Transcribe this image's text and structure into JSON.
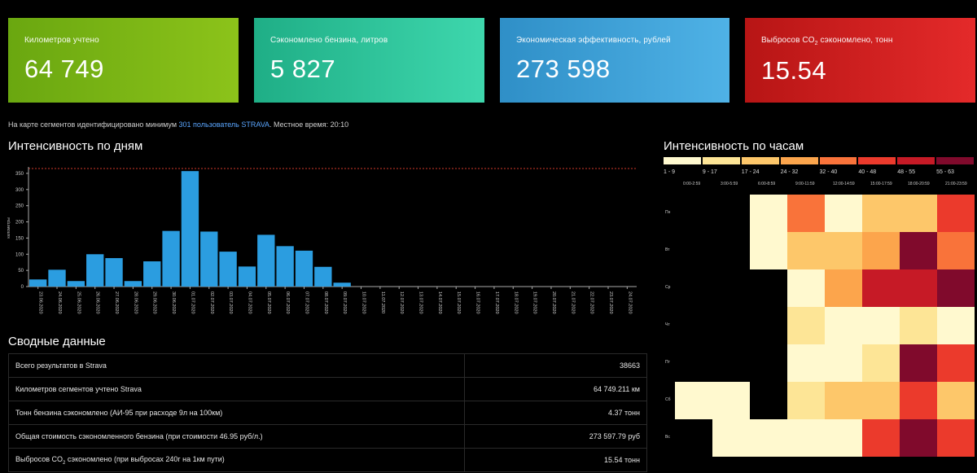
{
  "cards": [
    {
      "label": "Километров учтено",
      "value": "64 749",
      "color": "#7fb517"
    },
    {
      "label": "Сэкономлено бензина, литров",
      "value": "5 827",
      "color": "#2fc49c"
    },
    {
      "label": "Экономическая эффективность, рублей",
      "value": "273 598",
      "color": "#3fa2d8"
    },
    {
      "label_pre": "Выбросов CO",
      "label_sub": "2",
      "label_post": " сэкономлено, тонн",
      "value": "15.54",
      "color": "#cf1f1f"
    }
  ],
  "info": {
    "prefix": "На карте сегментов идентифицировано минимум ",
    "link": "301 пользователь STRAVA",
    "suffix": ". Местное время: 20:10"
  },
  "days_title": "Интенсивность по дням",
  "summary_title": "Сводные данные",
  "hours_title": "Интенсивность по часам",
  "summary": [
    {
      "label": "Всего результатов в Strava",
      "value": "38663"
    },
    {
      "label": "Километров сегментов учтено Strava",
      "value": "64 749.211 км"
    },
    {
      "label": "Тонн бензина сэкономлено (АИ-95 при расходе 9л на 100км)",
      "value": "4.37 тонн"
    },
    {
      "label": "Общая стоимость сэкономленного бензина (при стоимости 46.95 руб/л.)",
      "value": "273 597.79 руб"
    },
    {
      "label_pre": "Выбросов CO",
      "label_sub": "2",
      "label_post": " сэкономлено (при выбросах 240г на 1км пути)",
      "value": "15.54 тонн"
    }
  ],
  "chart_data": [
    {
      "type": "bar",
      "title": "Интенсивность по дням",
      "ylabel": "километры",
      "ylim": [
        0,
        360
      ],
      "yticks": [
        0,
        50,
        100,
        150,
        200,
        250,
        300,
        350
      ],
      "reference_line": 365,
      "color": "#2b9de0",
      "categories": [
        "23.06.2020",
        "24.06.2020",
        "25.06.2020",
        "26.06.2020",
        "27.06.2020",
        "28.06.2020",
        "29.06.2020",
        "30.06.2020",
        "01.07.2020",
        "02.07.2020",
        "03.07.2020",
        "04.07.2020",
        "05.07.2020",
        "06.07.2020",
        "07.07.2020",
        "08.07.2020",
        "09.07.2020",
        "10.07.2020",
        "11.07.2020",
        "12.07.2020",
        "13.07.2020",
        "14.07.2020",
        "15.07.2020",
        "16.07.2020",
        "17.07.2020",
        "18.07.2020",
        "19.07.2020",
        "20.07.2020",
        "21.07.2020",
        "22.07.2020",
        "23.07.2020",
        "24.07.2020"
      ],
      "values": [
        22,
        52,
        17,
        100,
        88,
        17,
        78,
        172,
        357,
        170,
        108,
        62,
        160,
        125,
        111,
        61,
        12,
        0,
        0,
        0,
        0,
        0,
        0,
        0,
        0,
        0,
        0,
        0,
        0,
        0,
        0,
        0
      ]
    },
    {
      "type": "heatmap",
      "title": "Интенсивность по часам",
      "legend": [
        {
          "label": "1 - 9",
          "color": "#fff9cf"
        },
        {
          "label": "9 - 17",
          "color": "#fde596"
        },
        {
          "label": "17 - 24",
          "color": "#fdc76a"
        },
        {
          "label": "24 - 32",
          "color": "#fca54c"
        },
        {
          "label": "32 - 40",
          "color": "#f9733a"
        },
        {
          "label": "40 - 48",
          "color": "#eb3a2c"
        },
        {
          "label": "48 - 55",
          "color": "#c61a26"
        },
        {
          "label": "55 - 63",
          "color": "#800a2c"
        }
      ],
      "columns": [
        "0:00-2:59",
        "3:00-5:59",
        "6:00-8:59",
        "9:00-11:59",
        "12:00-14:59",
        "15:00-17:59",
        "18:00-20:59",
        "21:00-23:59"
      ],
      "rows": [
        "Пн",
        "Вт",
        "Ср",
        "Чт",
        "Пт",
        "Сб",
        "Вс"
      ],
      "values": [
        [
          0,
          0,
          1,
          5,
          1,
          3,
          3,
          6
        ],
        [
          0,
          0,
          1,
          3,
          3,
          4,
          8,
          5
        ],
        [
          0,
          0,
          0,
          1,
          4,
          7,
          7,
          8
        ],
        [
          0,
          0,
          0,
          2,
          1,
          1,
          2,
          1
        ],
        [
          0,
          0,
          0,
          1,
          1,
          2,
          8,
          6
        ],
        [
          1,
          1,
          0,
          2,
          3,
          3,
          6,
          3
        ],
        [
          0,
          1,
          1,
          1,
          1,
          6,
          8,
          6
        ]
      ]
    }
  ]
}
